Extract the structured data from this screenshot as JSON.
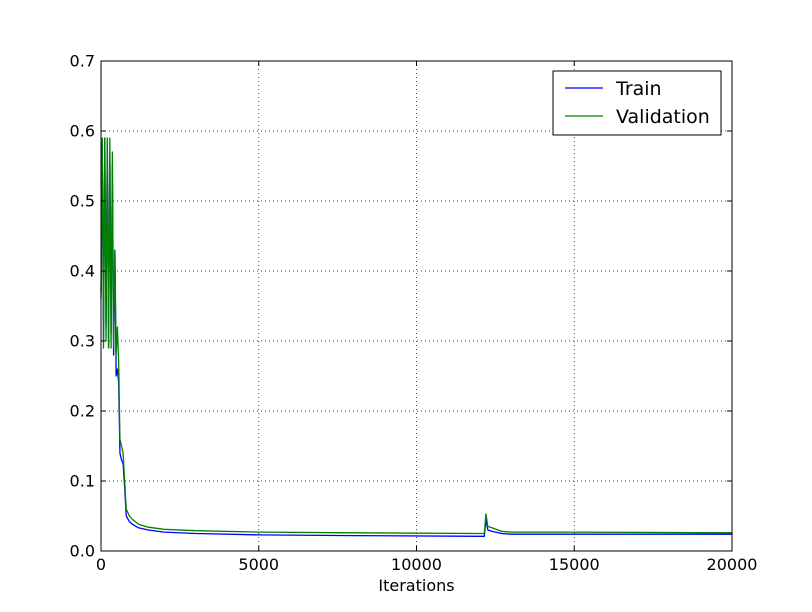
{
  "chart_data": {
    "type": "line",
    "title": "",
    "xlabel": "Iterations",
    "ylabel": "",
    "xlim": [
      0,
      20000
    ],
    "ylim": [
      0.0,
      0.7
    ],
    "x_ticks": [
      0,
      5000,
      10000,
      15000,
      20000
    ],
    "x_tick_labels": [
      "0",
      "5000",
      "10000",
      "15000",
      "20000"
    ],
    "y_ticks": [
      0.0,
      0.1,
      0.2,
      0.3,
      0.4,
      0.5,
      0.6,
      0.7
    ],
    "y_tick_labels": [
      "0.0",
      "0.1",
      "0.2",
      "0.3",
      "0.4",
      "0.5",
      "0.6",
      "0.7"
    ],
    "grid": true,
    "legend_position": "top-right",
    "series": [
      {
        "name": "Train",
        "color": "#0000ff",
        "points": [
          [
            0,
            0.36
          ],
          [
            40,
            0.58
          ],
          [
            80,
            0.3
          ],
          [
            120,
            0.59
          ],
          [
            160,
            0.32
          ],
          [
            200,
            0.58
          ],
          [
            240,
            0.29
          ],
          [
            280,
            0.57
          ],
          [
            320,
            0.31
          ],
          [
            360,
            0.55
          ],
          [
            400,
            0.28
          ],
          [
            440,
            0.43
          ],
          [
            480,
            0.25
          ],
          [
            520,
            0.26
          ],
          [
            560,
            0.24
          ],
          [
            600,
            0.14
          ],
          [
            650,
            0.13
          ],
          [
            700,
            0.125
          ],
          [
            750,
            0.09
          ],
          [
            800,
            0.05
          ],
          [
            900,
            0.042
          ],
          [
            1000,
            0.038
          ],
          [
            1200,
            0.033
          ],
          [
            1500,
            0.03
          ],
          [
            2000,
            0.027
          ],
          [
            3000,
            0.025
          ],
          [
            5000,
            0.023
          ],
          [
            8000,
            0.022
          ],
          [
            12000,
            0.021
          ],
          [
            12150,
            0.021
          ],
          [
            12200,
            0.045
          ],
          [
            12260,
            0.03
          ],
          [
            12400,
            0.028
          ],
          [
            12700,
            0.025
          ],
          [
            13000,
            0.024
          ],
          [
            15000,
            0.024
          ],
          [
            20000,
            0.024
          ]
        ]
      },
      {
        "name": "Validation",
        "color": "#008000",
        "points": [
          [
            0,
            0.37
          ],
          [
            40,
            0.59
          ],
          [
            80,
            0.29
          ],
          [
            120,
            0.59
          ],
          [
            160,
            0.3
          ],
          [
            200,
            0.59
          ],
          [
            240,
            0.29
          ],
          [
            280,
            0.59
          ],
          [
            320,
            0.29
          ],
          [
            360,
            0.57
          ],
          [
            400,
            0.29
          ],
          [
            440,
            0.43
          ],
          [
            480,
            0.28
          ],
          [
            520,
            0.32
          ],
          [
            560,
            0.27
          ],
          [
            600,
            0.16
          ],
          [
            650,
            0.15
          ],
          [
            700,
            0.14
          ],
          [
            750,
            0.1
          ],
          [
            800,
            0.06
          ],
          [
            900,
            0.05
          ],
          [
            1000,
            0.045
          ],
          [
            1200,
            0.038
          ],
          [
            1500,
            0.034
          ],
          [
            2000,
            0.031
          ],
          [
            3000,
            0.029
          ],
          [
            5000,
            0.027
          ],
          [
            8000,
            0.026
          ],
          [
            12000,
            0.025
          ],
          [
            12150,
            0.025
          ],
          [
            12200,
            0.053
          ],
          [
            12260,
            0.035
          ],
          [
            12400,
            0.033
          ],
          [
            12700,
            0.028
          ],
          [
            13000,
            0.027
          ],
          [
            15000,
            0.027
          ],
          [
            20000,
            0.026
          ]
        ]
      }
    ]
  }
}
